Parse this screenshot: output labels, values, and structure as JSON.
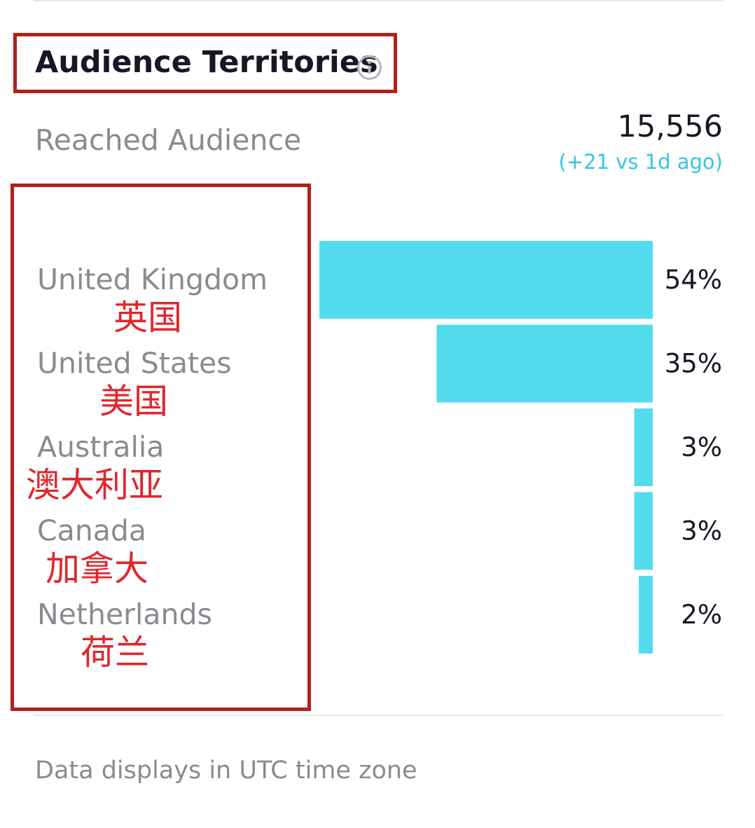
{
  "section": {
    "title": "Audience Territories",
    "info_icon": "info-circle-icon"
  },
  "summary": {
    "label": "Reached Audience",
    "total": "15,556",
    "change": "(+21 vs 1d ago)"
  },
  "chart_data": {
    "type": "bar",
    "orientation": "horizontal",
    "categories": [
      "United Kingdom",
      "United States",
      "Australia",
      "Canada",
      "Netherlands"
    ],
    "annotations": [
      "英国",
      "美国",
      "澳大利亚",
      "加拿大",
      "荷兰"
    ],
    "values": [
      54,
      35,
      3,
      3,
      2
    ],
    "value_labels": [
      "54%",
      "35%",
      "3%",
      "3%",
      "2%"
    ],
    "unit": "%",
    "xlim": [
      0,
      54
    ],
    "bar_color": "#52dcee"
  },
  "footer": {
    "note": "Data displays in UTC time zone"
  },
  "colors": {
    "annotation_box": "#b3201b",
    "annotation_text": "#e0262d",
    "accent": "#35c7de",
    "muted_text": "#8a8b91",
    "primary_text": "#161823"
  }
}
